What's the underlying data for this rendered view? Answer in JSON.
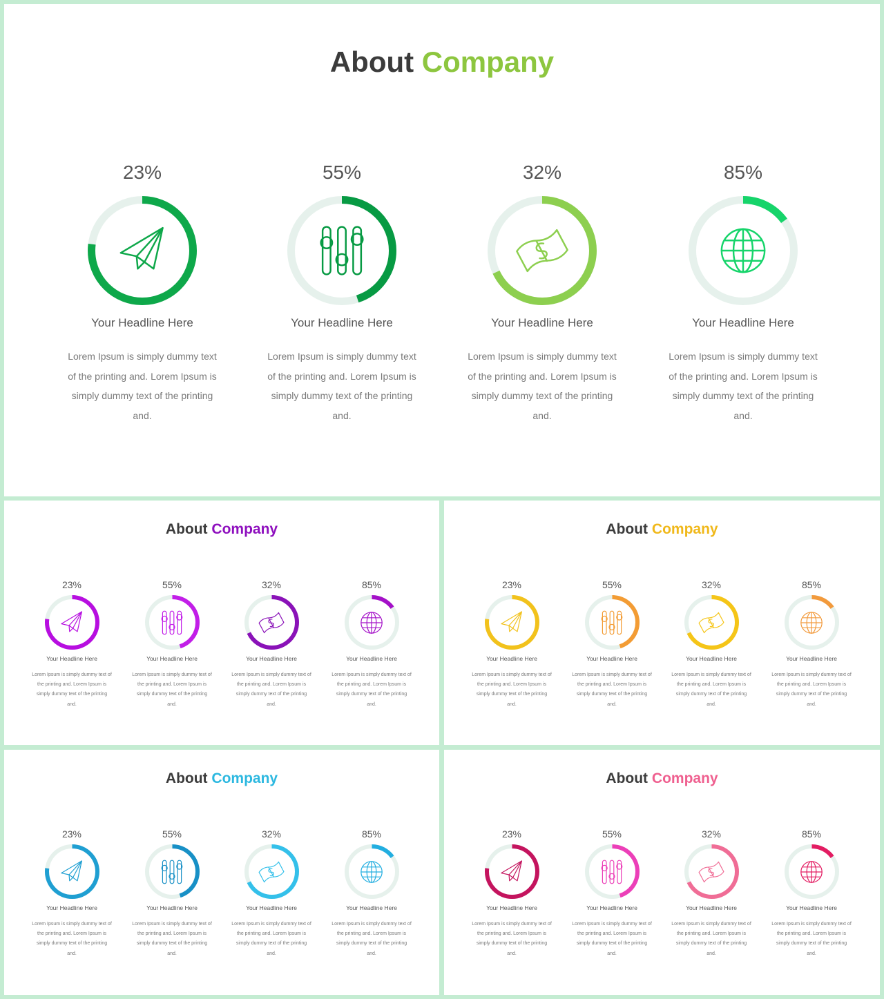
{
  "slides": [
    {
      "title_main": "About",
      "title_accent": "Company",
      "accent": "#8dc63f",
      "items": [
        {
          "percent_label": "23%",
          "percent": 23,
          "icon": "paper-plane-icon",
          "color": "#0ea84a",
          "headline": "Your Headline Here",
          "text": "Lorem Ipsum is simply dummy text of the printing and. Lorem Ipsum is simply dummy text of the printing and."
        },
        {
          "percent_label": "55%",
          "percent": 55,
          "icon": "sliders-icon",
          "color": "#079a43",
          "headline": "Your Headline Here",
          "text": "Lorem Ipsum is simply dummy text of the printing and. Lorem Ipsum is simply dummy text of the printing and."
        },
        {
          "percent_label": "32%",
          "percent": 32,
          "icon": "money-icon",
          "color": "#8dcf4f",
          "headline": "Your Headline Here",
          "text": "Lorem Ipsum is simply dummy text of the printing and. Lorem Ipsum is simply dummy text of the printing and."
        },
        {
          "percent_label": "85%",
          "percent": 85,
          "icon": "globe-icon",
          "color": "#16d46a",
          "headline": "Your Headline Here",
          "text": "Lorem Ipsum is simply dummy text of the printing and. Lorem Ipsum is simply dummy text of the printing and."
        }
      ]
    },
    {
      "title_main": "About",
      "title_accent": "Company",
      "accent": "#8e0fbe",
      "items": [
        {
          "percent_label": "23%",
          "percent": 23,
          "icon": "paper-plane-icon",
          "color": "#b70ee0",
          "headline": "Your Headline Here",
          "text": "Lorem Ipsum is simply dummy text of the printing and. Lorem Ipsum is simply dummy text of the printing and."
        },
        {
          "percent_label": "55%",
          "percent": 55,
          "icon": "sliders-icon",
          "color": "#c21ee8",
          "headline": "Your Headline Here",
          "text": "Lorem Ipsum is simply dummy text of the printing and. Lorem Ipsum is simply dummy text of the printing and."
        },
        {
          "percent_label": "32%",
          "percent": 32,
          "icon": "money-icon",
          "color": "#8a12b8",
          "headline": "Your Headline Here",
          "text": "Lorem Ipsum is simply dummy text of the printing and. Lorem Ipsum is simply dummy text of the printing and."
        },
        {
          "percent_label": "85%",
          "percent": 85,
          "icon": "globe-icon",
          "color": "#a410c8",
          "headline": "Your Headline Here",
          "text": "Lorem Ipsum is simply dummy text of the printing and. Lorem Ipsum is simply dummy text of the printing and."
        }
      ]
    },
    {
      "title_main": "About",
      "title_accent": "Company",
      "accent": "#f0b81a",
      "items": [
        {
          "percent_label": "23%",
          "percent": 23,
          "icon": "paper-plane-icon",
          "color": "#f2c21c",
          "headline": "Your Headline Here",
          "text": "Lorem Ipsum is simply dummy text of the printing and. Lorem Ipsum is simply dummy text of the printing and."
        },
        {
          "percent_label": "55%",
          "percent": 55,
          "icon": "sliders-icon",
          "color": "#f39c34",
          "headline": "Your Headline Here",
          "text": "Lorem Ipsum is simply dummy text of the printing and. Lorem Ipsum is simply dummy text of the printing and."
        },
        {
          "percent_label": "32%",
          "percent": 32,
          "icon": "money-icon",
          "color": "#f5c518",
          "headline": "Your Headline Here",
          "text": "Lorem Ipsum is simply dummy text of the printing and. Lorem Ipsum is simply dummy text of the printing and."
        },
        {
          "percent_label": "85%",
          "percent": 85,
          "icon": "globe-icon",
          "color": "#f29a3c",
          "headline": "Your Headline Here",
          "text": "Lorem Ipsum is simply dummy text of the printing and. Lorem Ipsum is simply dummy text of the printing and."
        }
      ]
    },
    {
      "title_main": "About",
      "title_accent": "Company",
      "accent": "#2cb8e0",
      "items": [
        {
          "percent_label": "23%",
          "percent": 23,
          "icon": "paper-plane-icon",
          "color": "#1f9fd2",
          "headline": "Your Headline Here",
          "text": "Lorem Ipsum is simply dummy text of the printing and. Lorem Ipsum is simply dummy text of the printing and."
        },
        {
          "percent_label": "55%",
          "percent": 55,
          "icon": "sliders-icon",
          "color": "#1890c6",
          "headline": "Your Headline Here",
          "text": "Lorem Ipsum is simply dummy text of the printing and. Lorem Ipsum is simply dummy text of the printing and."
        },
        {
          "percent_label": "32%",
          "percent": 32,
          "icon": "money-icon",
          "color": "#34c0ea",
          "headline": "Your Headline Here",
          "text": "Lorem Ipsum is simply dummy text of the printing and. Lorem Ipsum is simply dummy text of the printing and."
        },
        {
          "percent_label": "85%",
          "percent": 85,
          "icon": "globe-icon",
          "color": "#22aee0",
          "headline": "Your Headline Here",
          "text": "Lorem Ipsum is simply dummy text of the printing and. Lorem Ipsum is simply dummy text of the printing and."
        }
      ]
    },
    {
      "title_main": "About",
      "title_accent": "Company",
      "accent": "#ef5f8f",
      "items": [
        {
          "percent_label": "23%",
          "percent": 23,
          "icon": "paper-plane-icon",
          "color": "#c4145e",
          "headline": "Your Headline Here",
          "text": "Lorem Ipsum is simply dummy text of the printing and. Lorem Ipsum is simply dummy text of the printing and."
        },
        {
          "percent_label": "55%",
          "percent": 55,
          "icon": "sliders-icon",
          "color": "#ec3fb8",
          "headline": "Your Headline Here",
          "text": "Lorem Ipsum is simply dummy text of the printing and. Lorem Ipsum is simply dummy text of the printing and."
        },
        {
          "percent_label": "32%",
          "percent": 32,
          "icon": "money-icon",
          "color": "#f06d96",
          "headline": "Your Headline Here",
          "text": "Lorem Ipsum is simply dummy text of the printing and. Lorem Ipsum is simply dummy text of the printing and."
        },
        {
          "percent_label": "85%",
          "percent": 85,
          "icon": "globe-icon",
          "color": "#e31c62",
          "headline": "Your Headline Here",
          "text": "Lorem Ipsum is simply dummy text of the printing and. Lorem Ipsum is simply dummy text of the printing and."
        }
      ]
    }
  ]
}
